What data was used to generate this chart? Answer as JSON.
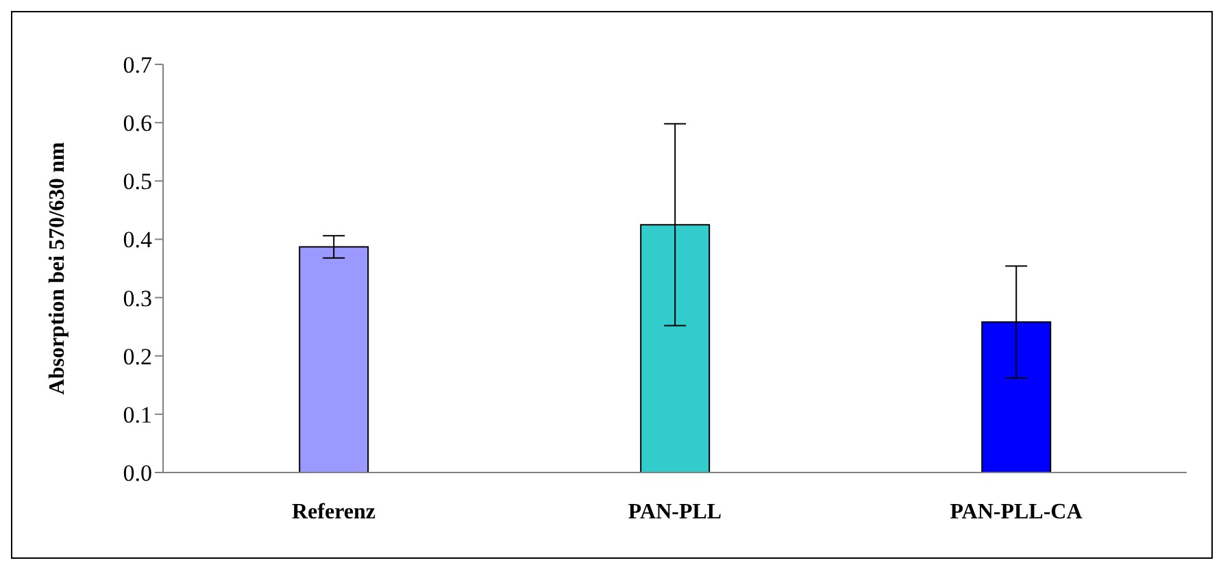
{
  "chart_data": {
    "type": "bar",
    "ylabel": "Absorption bei 570/630 nm",
    "categories": [
      "Referenz",
      "PAN-PLL",
      "PAN-PLL-CA"
    ],
    "values": [
      0.387,
      0.425,
      0.258
    ],
    "errors": [
      0.019,
      0.173,
      0.096
    ],
    "colors": [
      "#9999ff",
      "#33cccc",
      "#0000ff"
    ],
    "ylim": [
      0,
      0.7
    ],
    "yticks": [
      {
        "value": 0,
        "label": "0.0"
      },
      {
        "value": 0.1,
        "label": "0.1"
      },
      {
        "value": 0.2,
        "label": "0.2"
      },
      {
        "value": 0.3,
        "label": "0.3"
      },
      {
        "value": 0.4,
        "label": "0.4"
      },
      {
        "value": 0.5,
        "label": "0.5"
      },
      {
        "value": 0.6,
        "label": "0.6"
      },
      {
        "value": 0.7,
        "label": "0.7"
      }
    ],
    "grid": false,
    "legend": false
  }
}
